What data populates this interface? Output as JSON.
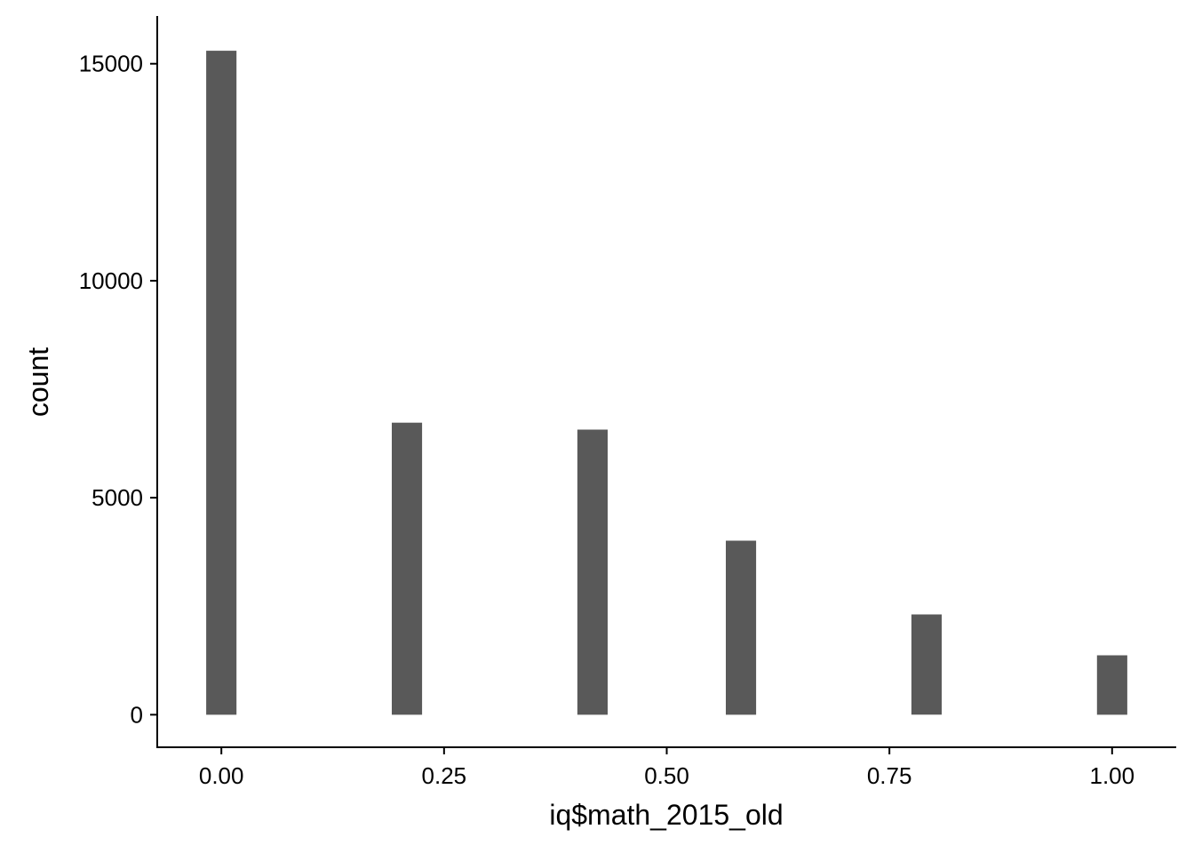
{
  "chart_data": {
    "type": "bar",
    "title": "",
    "xlabel": "iq$math_2015_old",
    "ylabel": "count",
    "x": [
      0.0,
      0.2083,
      0.4167,
      0.5833,
      0.7917,
      1.0
    ],
    "values": [
      15300,
      6730,
      6570,
      4010,
      2310,
      1370
    ],
    "bar_width": 0.034,
    "xlim": [
      -0.072,
      1.072
    ],
    "ylim": [
      -750,
      16100
    ],
    "x_ticks": [
      0.0,
      0.25,
      0.5,
      0.75,
      1.0
    ],
    "x_tick_labels": [
      "0.00",
      "0.25",
      "0.50",
      "0.75",
      "1.00"
    ],
    "y_ticks": [
      0,
      5000,
      10000,
      15000
    ],
    "y_tick_labels": [
      "0",
      "5000",
      "10000",
      "15000"
    ],
    "grid": false,
    "legend": "none",
    "bar_color": "#595959"
  }
}
